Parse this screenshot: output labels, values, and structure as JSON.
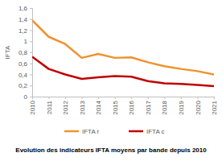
{
  "chart_data": {
    "type": "line",
    "title": "Evolution des indicateurs IFTA moyens par bande depuis 2010",
    "y_label": "IFTA",
    "x": [
      2010,
      2011,
      2012,
      2013,
      2014,
      2015,
      2016,
      2017,
      2018,
      2019,
      2020,
      2021
    ],
    "xlim": [
      2010,
      2021
    ],
    "xticks": [
      2010,
      2011,
      2012,
      2013,
      2014,
      2015,
      2016,
      2017,
      2018,
      2019,
      2020,
      2021
    ],
    "ylim": [
      0,
      1.6
    ],
    "yticks": [
      0,
      {
        "value": 0.2,
        "label": "0,2"
      },
      {
        "value": 0.4,
        "label": "0,4"
      },
      {
        "value": 0.6,
        "label": "0,6"
      },
      {
        "value": 0.8,
        "label": "0,8"
      },
      1,
      {
        "value": 1.2,
        "label": "1,2"
      },
      {
        "value": 1.4,
        "label": "1,4"
      },
      {
        "value": 1.6,
        "label": "1,6"
      }
    ],
    "grid": false,
    "legend": "bottom",
    "series": [
      {
        "name": "IFTA r",
        "color": "#f0922e",
        "values": [
          1.38,
          1.08,
          0.95,
          0.7,
          0.77,
          0.7,
          0.71,
          0.62,
          0.55,
          0.5,
          0.46,
          0.4
        ]
      },
      {
        "name": "IFTA c",
        "color": "#c00000",
        "values": [
          0.72,
          0.5,
          0.4,
          0.32,
          0.35,
          0.37,
          0.36,
          0.28,
          0.24,
          0.23,
          0.21,
          0.19
        ]
      }
    ]
  }
}
